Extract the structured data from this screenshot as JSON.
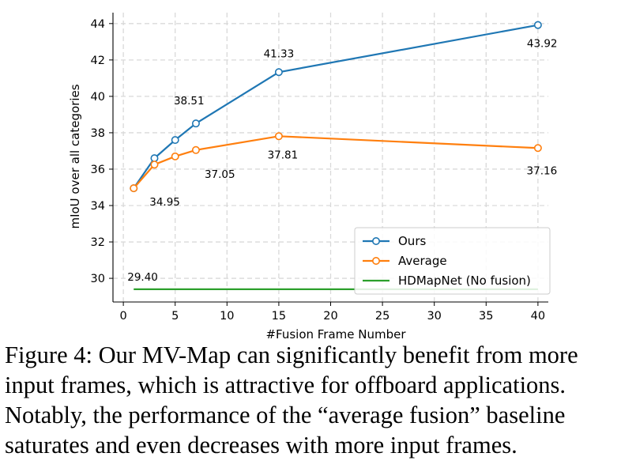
{
  "chart_data": {
    "type": "line",
    "xlabel": "#Fusion Frame Number",
    "ylabel": "mIoU over all categories",
    "xlim": [
      -1,
      41
    ],
    "ylim": [
      28.7,
      44.6
    ],
    "xticks": [
      0,
      5,
      10,
      15,
      20,
      25,
      30,
      35,
      40
    ],
    "yticks": [
      30,
      32,
      34,
      36,
      38,
      40,
      42,
      44
    ],
    "grid": true,
    "legend": "lower-right",
    "series": [
      {
        "name": "Ours",
        "color": "#1f77b4",
        "marker": "open-circle",
        "x": [
          1,
          3,
          5,
          7,
          15,
          40
        ],
        "y": [
          34.95,
          36.6,
          37.6,
          38.51,
          41.33,
          43.92
        ]
      },
      {
        "name": "Average",
        "color": "#ff7f0e",
        "marker": "open-circle",
        "x": [
          1,
          3,
          5,
          7,
          15,
          40
        ],
        "y": [
          34.95,
          36.25,
          36.7,
          37.05,
          37.81,
          37.16
        ]
      },
      {
        "name": "HDMapNet (No fusion)",
        "color": "#2ca02c",
        "marker": "none",
        "x": [
          1,
          40
        ],
        "y": [
          29.4,
          29.4
        ]
      }
    ],
    "annotations": [
      {
        "text": "34.95",
        "x": 1,
        "y": 34.95,
        "pos": "below-right"
      },
      {
        "text": "38.51",
        "x": 7,
        "y": 38.51,
        "pos": "above-left"
      },
      {
        "text": "37.05",
        "x": 7,
        "y": 37.05,
        "pos": "below-right"
      },
      {
        "text": "41.33",
        "x": 15,
        "y": 41.33,
        "pos": "above"
      },
      {
        "text": "37.81",
        "x": 15,
        "y": 37.81,
        "pos": "below"
      },
      {
        "text": "43.92",
        "x": 40,
        "y": 43.92,
        "pos": "below-right"
      },
      {
        "text": "37.16",
        "x": 40,
        "y": 37.16,
        "pos": "below"
      },
      {
        "text": "29.40",
        "x": 1,
        "y": 29.4,
        "pos": "above-right"
      }
    ]
  },
  "caption": {
    "lines": [
      "Figure 4: Our MV-Map can significantly benefit from more",
      "input frames, which is attractive for offboard applications.",
      "Notably, the performance of the “average fusion” baseline",
      "saturates and even decreases with more input frames."
    ]
  }
}
